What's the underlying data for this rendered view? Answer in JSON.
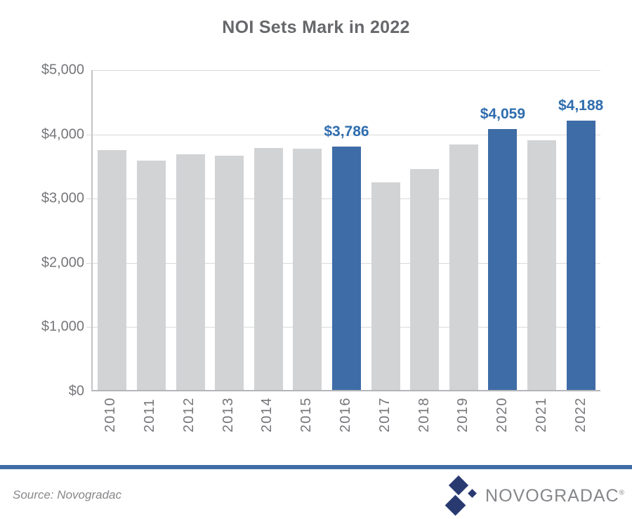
{
  "title": "NOI Sets Mark in 2022",
  "chart_data": {
    "type": "bar",
    "title": "NOI Sets Mark in 2022",
    "categories": [
      "2010",
      "2011",
      "2012",
      "2013",
      "2014",
      "2015",
      "2016",
      "2017",
      "2018",
      "2019",
      "2020",
      "2021",
      "2022"
    ],
    "values": [
      3730,
      3570,
      3670,
      3650,
      3770,
      3760,
      3786,
      3230,
      3440,
      3825,
      4059,
      3890,
      4188
    ],
    "highlighted_indices": [
      6,
      10,
      12
    ],
    "data_labels": [
      "",
      "",
      "",
      "",
      "",
      "",
      "$3,786",
      "",
      "",
      "",
      "$4,059",
      "",
      "$4,188"
    ],
    "xlabel": "",
    "ylabel": "",
    "ylim": [
      0,
      5000
    ],
    "y_ticks": [
      {
        "value": 5000,
        "label": "$5,000"
      },
      {
        "value": 4000,
        "label": "$4,000"
      },
      {
        "value": 3000,
        "label": "$3,000"
      },
      {
        "value": 2000,
        "label": "$2,000"
      },
      {
        "value": 1000,
        "label": "$1,000"
      },
      {
        "value": 0,
        "label": "$0"
      }
    ],
    "grid": true,
    "legend": false
  },
  "colors": {
    "title_text": "#67686b",
    "axis_text": "#75767a",
    "axis_line": "#c3c4c6",
    "axis_line_dark": "#b4b5b8",
    "gridline": "#d8d9da",
    "bar_default": "#d2d3d5",
    "bar_highlight": "#3e6ca6",
    "data_label": "#2f6dae",
    "divider": "#3e6ca6",
    "logo_diamond": "#293a71",
    "logo_text": "#85878a"
  },
  "footer": {
    "source": "Source: Novogradac",
    "brand": "NOVOGRADAC",
    "registered_mark": "®"
  }
}
